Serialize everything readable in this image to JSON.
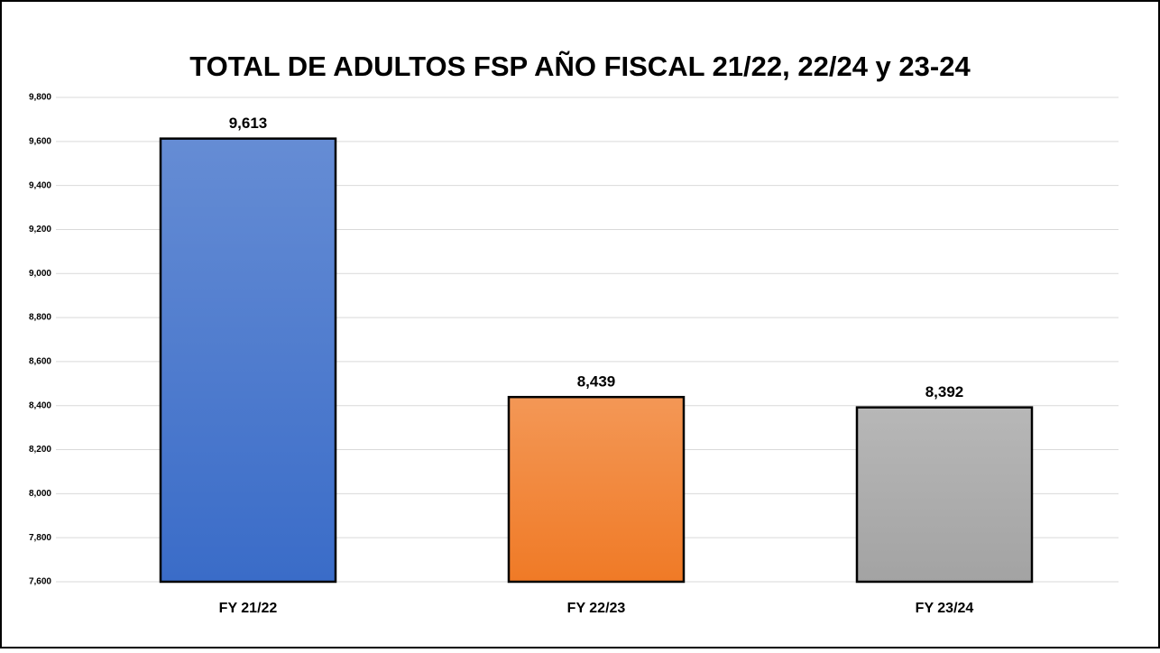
{
  "chart_data": {
    "type": "bar",
    "title": "TOTAL DE ADULTOS FSP AÑO FISCAL 21/22, 22/24 y 23-24",
    "categories": [
      "FY 21/22",
      "FY 22/23",
      "FY 23/24"
    ],
    "values": [
      9613,
      8439,
      8392
    ],
    "value_labels": [
      "9,613",
      "8,439",
      "8,392"
    ],
    "colors": [
      "#3a6cc8",
      "#f07a26",
      "#a3a3a3"
    ],
    "ylim": [
      7600,
      9800
    ],
    "yticks": [
      {
        "value": 7600,
        "label": "7,600"
      },
      {
        "value": 7800,
        "label": "7,800"
      },
      {
        "value": 8000,
        "label": "8,000"
      },
      {
        "value": 8200,
        "label": "8,200"
      },
      {
        "value": 8400,
        "label": "8,400"
      },
      {
        "value": 8600,
        "label": "8,600"
      },
      {
        "value": 8800,
        "label": "8,800"
      },
      {
        "value": 9000,
        "label": "9,000"
      },
      {
        "value": 9200,
        "label": "9,200"
      },
      {
        "value": 9400,
        "label": "9,400"
      },
      {
        "value": 9600,
        "label": "9,600"
      },
      {
        "value": 9800,
        "label": "9,800"
      }
    ],
    "grid": true
  }
}
